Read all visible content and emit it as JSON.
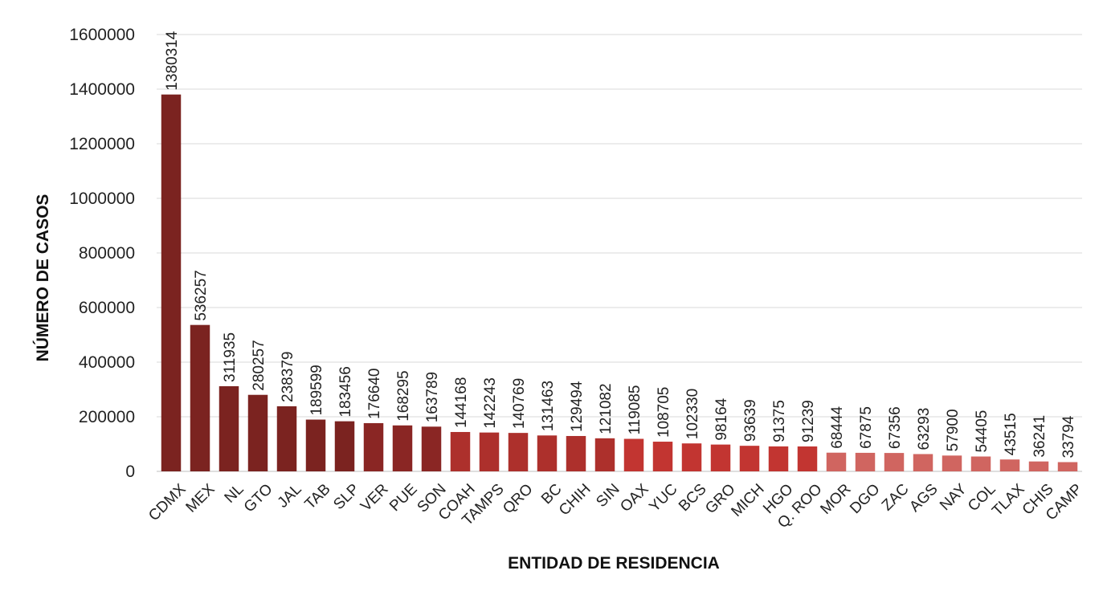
{
  "chart_data": {
    "type": "bar",
    "title": "",
    "xlabel": "ENTIDAD DE RESIDENCIA",
    "ylabel": "NÚMERO DE CASOS",
    "ylim": [
      0,
      1600000
    ],
    "yticks": [
      0,
      200000,
      400000,
      600000,
      800000,
      1000000,
      1200000,
      1400000,
      1600000
    ],
    "grid": true,
    "legend": "none",
    "categories": [
      "CDMX",
      "MEX",
      "NL",
      "GTO",
      "JAL",
      "TAB",
      "SLP",
      "VER",
      "PUE",
      "SON",
      "COAH",
      "TAMPS",
      "QRO",
      "BC",
      "CHIH",
      "SIN",
      "OAX",
      "YUC",
      "BCS",
      "GRO",
      "MICH",
      "HGO",
      "Q. ROO",
      "MOR",
      "DGO",
      "ZAC",
      "AGS",
      "NAY",
      "COL",
      "TLAX",
      "CHIS",
      "CAMP"
    ],
    "values": [
      1380314,
      536257,
      311935,
      280257,
      238379,
      189599,
      183456,
      176640,
      168295,
      163789,
      144168,
      142243,
      140769,
      131463,
      129494,
      121082,
      119085,
      108705,
      102330,
      98164,
      93639,
      91375,
      91239,
      68444,
      67875,
      67356,
      63293,
      57900,
      54405,
      43515,
      36241,
      33794
    ],
    "data_labels": [
      "1380314",
      "536257",
      "311935",
      "280257",
      "238379",
      "189599",
      "183456",
      "176640",
      "168295",
      "163789",
      "144168",
      "142243",
      "140769",
      "131463",
      "129494",
      "121082",
      "119085",
      "108705",
      "102330",
      "98164",
      "93639",
      "91375",
      "91239",
      "68444",
      "67875",
      "67356",
      "63293",
      "57900",
      "54405",
      "43515",
      "36241",
      "33794"
    ],
    "colors": [
      "#7b2320",
      "#7b2320",
      "#7b2320",
      "#7b2320",
      "#7b2320",
      "#7b2320",
      "#7b2320",
      "#8a2624",
      "#8a2624",
      "#8a2624",
      "#ad302c",
      "#ad302c",
      "#ad302c",
      "#ad302c",
      "#ad302c",
      "#ad302c",
      "#c23531",
      "#c23531",
      "#c23531",
      "#c23531",
      "#c23531",
      "#c23531",
      "#c23531",
      "#d06560",
      "#d06560",
      "#d06560",
      "#d06560",
      "#d06560",
      "#d06560",
      "#d06560",
      "#d06560",
      "#d06560"
    ]
  }
}
